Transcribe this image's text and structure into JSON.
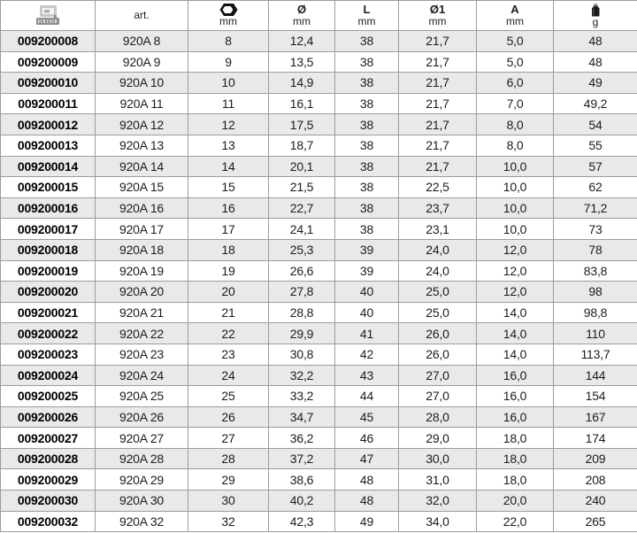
{
  "colors": {
    "row_alt": "#e9e9e9",
    "row_base": "#ffffff",
    "grid_border": "#9c9c9c",
    "text": "#1c1c1c",
    "code_text": "#000000"
  },
  "table": {
    "columns": [
      {
        "name": "code",
        "icon": "barcode-label-icon",
        "label": "",
        "unit": ""
      },
      {
        "name": "art",
        "icon": "",
        "label": "art.",
        "unit": ""
      },
      {
        "name": "size",
        "icon": "hex-socket-icon",
        "label": "",
        "unit": "mm"
      },
      {
        "name": "diameter",
        "icon": "",
        "label": "Ø",
        "unit": "mm"
      },
      {
        "name": "length",
        "icon": "",
        "label": "L",
        "unit": "mm"
      },
      {
        "name": "diameter1",
        "icon": "",
        "label": "Ø1",
        "unit": "mm"
      },
      {
        "name": "a",
        "icon": "",
        "label": "A",
        "unit": "mm"
      },
      {
        "name": "weight",
        "icon": "weight-icon",
        "label": "",
        "unit": "g"
      }
    ],
    "rows": [
      [
        "009200008",
        "920A 8",
        "8",
        "12,4",
        "38",
        "21,7",
        "5,0",
        "48"
      ],
      [
        "009200009",
        "920A 9",
        "9",
        "13,5",
        "38",
        "21,7",
        "5,0",
        "48"
      ],
      [
        "009200010",
        "920A 10",
        "10",
        "14,9",
        "38",
        "21,7",
        "6,0",
        "49"
      ],
      [
        "009200011",
        "920A 11",
        "11",
        "16,1",
        "38",
        "21,7",
        "7,0",
        "49,2"
      ],
      [
        "009200012",
        "920A 12",
        "12",
        "17,5",
        "38",
        "21,7",
        "8,0",
        "54"
      ],
      [
        "009200013",
        "920A 13",
        "13",
        "18,7",
        "38",
        "21,7",
        "8,0",
        "55"
      ],
      [
        "009200014",
        "920A 14",
        "14",
        "20,1",
        "38",
        "21,7",
        "10,0",
        "57"
      ],
      [
        "009200015",
        "920A 15",
        "15",
        "21,5",
        "38",
        "22,5",
        "10,0",
        "62"
      ],
      [
        "009200016",
        "920A 16",
        "16",
        "22,7",
        "38",
        "23,7",
        "10,0",
        "71,2"
      ],
      [
        "009200017",
        "920A 17",
        "17",
        "24,1",
        "38",
        "23,1",
        "10,0",
        "73"
      ],
      [
        "009200018",
        "920A 18",
        "18",
        "25,3",
        "39",
        "24,0",
        "12,0",
        "78"
      ],
      [
        "009200019",
        "920A 19",
        "19",
        "26,6",
        "39",
        "24,0",
        "12,0",
        "83,8"
      ],
      [
        "009200020",
        "920A 20",
        "20",
        "27,8",
        "40",
        "25,0",
        "12,0",
        "98"
      ],
      [
        "009200021",
        "920A 21",
        "21",
        "28,8",
        "40",
        "25,0",
        "14,0",
        "98,8"
      ],
      [
        "009200022",
        "920A 22",
        "22",
        "29,9",
        "41",
        "26,0",
        "14,0",
        "110"
      ],
      [
        "009200023",
        "920A 23",
        "23",
        "30,8",
        "42",
        "26,0",
        "14,0",
        "113,7"
      ],
      [
        "009200024",
        "920A 24",
        "24",
        "32,2",
        "43",
        "27,0",
        "16,0",
        "144"
      ],
      [
        "009200025",
        "920A 25",
        "25",
        "33,2",
        "44",
        "27,0",
        "16,0",
        "154"
      ],
      [
        "009200026",
        "920A 26",
        "26",
        "34,7",
        "45",
        "28,0",
        "16,0",
        "167"
      ],
      [
        "009200027",
        "920A 27",
        "27",
        "36,2",
        "46",
        "29,0",
        "18,0",
        "174"
      ],
      [
        "009200028",
        "920A 28",
        "28",
        "37,2",
        "47",
        "30,0",
        "18,0",
        "209"
      ],
      [
        "009200029",
        "920A 29",
        "29",
        "38,6",
        "48",
        "31,0",
        "18,0",
        "208"
      ],
      [
        "009200030",
        "920A 30",
        "30",
        "40,2",
        "48",
        "32,0",
        "20,0",
        "240"
      ],
      [
        "009200032",
        "920A 32",
        "32",
        "42,3",
        "49",
        "34,0",
        "22,0",
        "265"
      ]
    ]
  }
}
